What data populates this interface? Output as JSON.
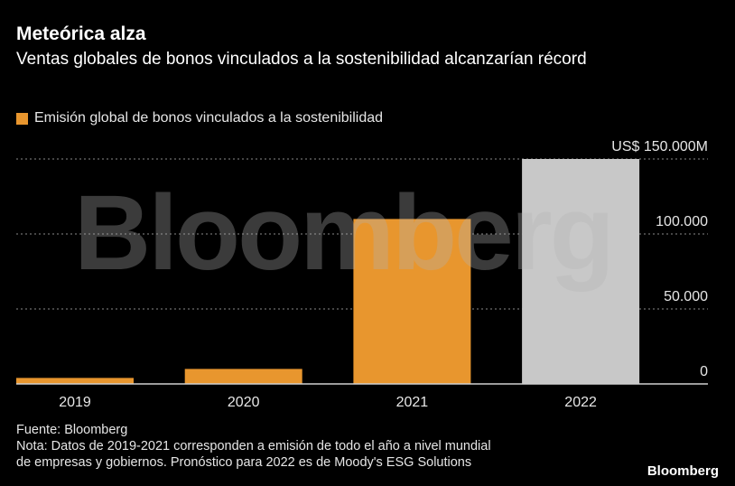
{
  "header": {
    "title": "Meteórica alza",
    "subtitle": "Ventas globales de bonos vinculados a la sostenibilidad alcanzarían récord"
  },
  "legend": {
    "label": "Emisión global de bonos vinculados a la sostenibilidad",
    "color": "#e8962e"
  },
  "chart_data": {
    "type": "bar",
    "categories": [
      "2019",
      "2020",
      "2021",
      "2022"
    ],
    "values": [
      4000,
      10000,
      110000,
      150000
    ],
    "bar_colors": [
      "#e8962e",
      "#e8962e",
      "#e8962e",
      "#c8c8c8"
    ],
    "ylim": [
      0,
      150000
    ],
    "yticks": [
      {
        "value": 150000,
        "label": "US$ 150.000M"
      },
      {
        "value": 100000,
        "label": "100.000"
      },
      {
        "value": 50000,
        "label": "50.000"
      },
      {
        "value": 0,
        "label": "0"
      }
    ],
    "grid": true,
    "legend_position": "top-left"
  },
  "footer": {
    "source": "Fuente: Bloomberg",
    "note_line1": "Nota: Datos de 2019-2021 corresponden a emisión de todo el año a nivel mundial",
    "note_line2": "de empresas y gobiernos. Pronóstico para 2022 es de Moody's ESG Solutions"
  },
  "watermark": "Bloomberg",
  "brand": "Bloomberg"
}
